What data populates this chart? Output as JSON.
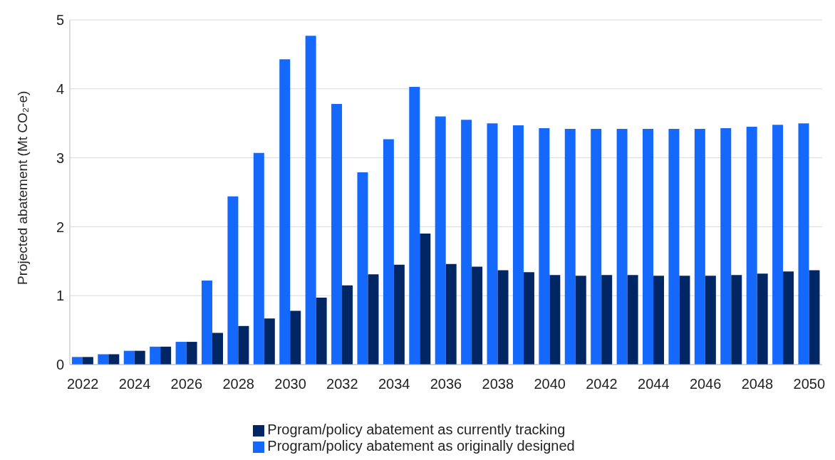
{
  "chart_data": {
    "type": "bar",
    "ylabel": "Projected abatement (Mt CO₂-e)",
    "categories": [
      "2022",
      null,
      "2024",
      null,
      "2026",
      null,
      "2028",
      null,
      "2030",
      null,
      "2032",
      null,
      "2034",
      null,
      "2036",
      null,
      "2038",
      null,
      "2040",
      null,
      "2042",
      null,
      "2044",
      null,
      "2046",
      null,
      "2048",
      null,
      "2050"
    ],
    "series": [
      {
        "name": "Program/policy abatement as originally designed",
        "color": "#1469fc",
        "values": [
          0.11,
          0.15,
          0.2,
          0.26,
          0.33,
          1.22,
          2.44,
          3.07,
          4.43,
          4.77,
          3.78,
          2.79,
          3.27,
          4.03,
          3.6,
          3.55,
          3.5,
          3.47,
          3.43,
          3.42,
          3.42,
          3.42,
          3.42,
          3.42,
          3.42,
          3.43,
          3.45,
          3.48,
          3.5
        ]
      },
      {
        "name": "Program/policy abatement as currently tracking",
        "color": "#002664",
        "values": [
          0.11,
          0.15,
          0.2,
          0.26,
          0.33,
          0.46,
          0.56,
          0.67,
          0.78,
          0.97,
          1.15,
          1.31,
          1.45,
          1.9,
          1.46,
          1.42,
          1.37,
          1.34,
          1.3,
          1.29,
          1.3,
          1.3,
          1.29,
          1.29,
          1.29,
          1.3,
          1.32,
          1.35,
          1.37
        ]
      }
    ],
    "ylim": [
      0,
      5
    ],
    "yticks": [
      0,
      1,
      2,
      3,
      4,
      5
    ],
    "grid": "y",
    "legend": "bottom"
  }
}
